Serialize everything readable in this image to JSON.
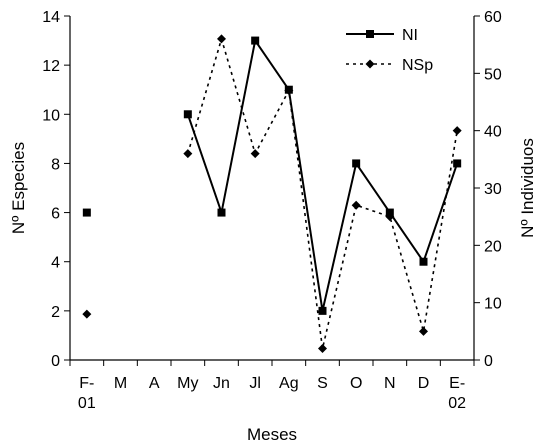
{
  "chart_data": {
    "type": "line",
    "xlabel": "Meses",
    "ylabel_left": "Nº Especies",
    "ylabel_right": "Nº Individuos",
    "categories": [
      [
        "F-",
        "01"
      ],
      [
        "M"
      ],
      [
        "A"
      ],
      [
        "My"
      ],
      [
        "Jn"
      ],
      [
        "Jl"
      ],
      [
        "Ag"
      ],
      [
        "S"
      ],
      [
        "O"
      ],
      [
        "N"
      ],
      [
        "D"
      ],
      [
        "E-",
        "02"
      ]
    ],
    "ylim_left": [
      0,
      14
    ],
    "yticks_left": [
      0,
      2,
      4,
      6,
      8,
      10,
      12,
      14
    ],
    "ylim_right": [
      0,
      60
    ],
    "yticks_right": [
      0,
      10,
      20,
      30,
      40,
      50,
      60
    ],
    "grid": false,
    "legend_position": "top-right",
    "series": [
      {
        "name": "NI",
        "axis": "left",
        "line_style": "solid",
        "marker": "square",
        "color": "#000000",
        "values": [
          6,
          null,
          null,
          10,
          6,
          13,
          11,
          2,
          8,
          6,
          4,
          8
        ],
        "segments": [
          [
            3,
            11
          ]
        ]
      },
      {
        "name": "NSp",
        "axis": "right",
        "line_style": "dotted",
        "marker": "diamond",
        "color": "#000000",
        "values": [
          8,
          null,
          null,
          36,
          56,
          36,
          47,
          2,
          27,
          25,
          5,
          40
        ],
        "segments": [
          [
            3,
            11
          ]
        ]
      }
    ]
  }
}
